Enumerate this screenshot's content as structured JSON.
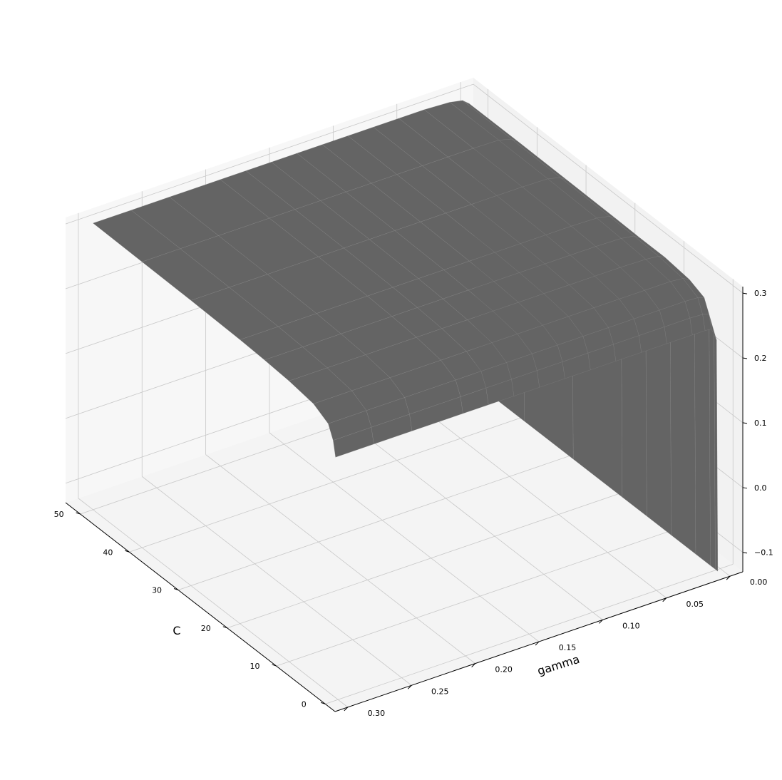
{
  "chart_data": {
    "type": "surface",
    "xlabel": "gamma",
    "ylabel": "C",
    "zlabel": "",
    "gamma_ticks": [
      "0.00",
      "0.05",
      "0.10",
      "0.15",
      "0.20",
      "0.25",
      "0.30"
    ],
    "c_ticks": [
      "0",
      "10",
      "20",
      "30",
      "40",
      "50"
    ],
    "z_ticks": [
      "−0.1",
      "0.0",
      "0.1",
      "0.2",
      "0.3"
    ],
    "gamma_range": [
      -0.01,
      0.31
    ],
    "c_range": [
      -2,
      53
    ],
    "z_range": [
      -0.13,
      0.31
    ],
    "surface_color": "#646464",
    "edge_color": "#8c8c8c",
    "grid": true,
    "surface_rows": [
      {
        "C": 0.5,
        "z": [
          -0.137,
          0.22,
          0.24,
          0.241,
          0.241,
          0.241,
          0.241,
          0.241,
          0.241,
          0.241,
          0.241,
          0.241,
          0.241,
          0.241,
          0.241,
          0.241,
          0.241
        ]
      },
      {
        "C": 1,
        "z": [
          -0.137,
          0.23,
          0.26,
          0.263,
          0.264,
          0.264,
          0.264,
          0.264,
          0.264,
          0.264,
          0.264,
          0.264,
          0.264,
          0.264,
          0.264,
          0.264,
          0.264
        ]
      },
      {
        "C": 2,
        "z": [
          -0.137,
          0.24,
          0.28,
          0.283,
          0.284,
          0.284,
          0.284,
          0.284,
          0.284,
          0.284,
          0.284,
          0.284,
          0.284,
          0.284,
          0.284,
          0.284,
          0.284
        ]
      },
      {
        "C": 5,
        "z": [
          -0.137,
          0.24,
          0.29,
          0.295,
          0.297,
          0.297,
          0.297,
          0.297,
          0.297,
          0.297,
          0.297,
          0.297,
          0.297,
          0.297,
          0.297,
          0.297,
          0.297
        ]
      },
      {
        "C": 10,
        "z": [
          -0.137,
          0.245,
          0.295,
          0.3,
          0.302,
          0.303,
          0.303,
          0.303,
          0.303,
          0.303,
          0.303,
          0.303,
          0.303,
          0.303,
          0.303,
          0.303,
          0.303
        ]
      },
      {
        "C": 15,
        "z": [
          -0.137,
          0.245,
          0.295,
          0.302,
          0.305,
          0.306,
          0.306,
          0.306,
          0.306,
          0.306,
          0.306,
          0.306,
          0.306,
          0.306,
          0.306,
          0.306,
          0.306
        ]
      },
      {
        "C": 20,
        "z": [
          -0.137,
          0.245,
          0.296,
          0.303,
          0.307,
          0.308,
          0.308,
          0.308,
          0.308,
          0.308,
          0.308,
          0.308,
          0.308,
          0.308,
          0.308,
          0.308,
          0.308
        ]
      },
      {
        "C": 30,
        "z": [
          -0.137,
          0.245,
          0.297,
          0.304,
          0.309,
          0.31,
          0.31,
          0.31,
          0.31,
          0.31,
          0.31,
          0.31,
          0.31,
          0.31,
          0.31,
          0.31,
          0.31
        ]
      },
      {
        "C": 40,
        "z": [
          -0.137,
          0.245,
          0.298,
          0.305,
          0.31,
          0.311,
          0.311,
          0.311,
          0.311,
          0.311,
          0.311,
          0.311,
          0.311,
          0.311,
          0.311,
          0.311,
          0.311
        ]
      },
      {
        "C": 50,
        "z": [
          -0.137,
          0.245,
          0.298,
          0.306,
          0.31,
          0.312,
          0.312,
          0.312,
          0.312,
          0.312,
          0.312,
          0.312,
          0.312,
          0.312,
          0.312,
          0.312,
          0.312
        ]
      }
    ],
    "gamma_samples": [
      0.0,
      0.001,
      0.005,
      0.01,
      0.02,
      0.04,
      0.06,
      0.08,
      0.1,
      0.12,
      0.14,
      0.16,
      0.18,
      0.2,
      0.24,
      0.27,
      0.3
    ]
  }
}
